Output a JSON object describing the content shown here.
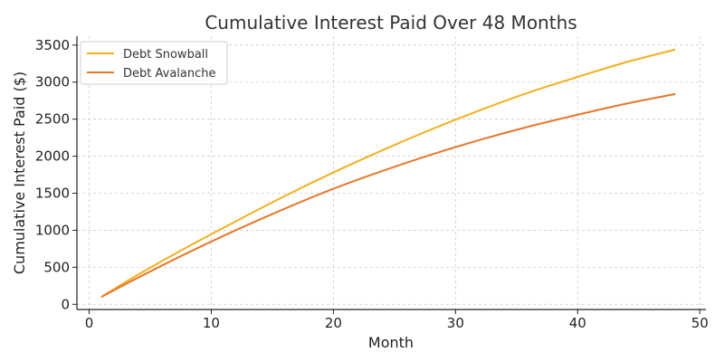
{
  "chart_data": {
    "type": "line",
    "title": "Cumulative Interest Paid Over 48 Months",
    "xlabel": "Month",
    "ylabel": "Cumulative Interest Paid ($)",
    "xlim": [
      -1,
      50.5
    ],
    "ylim": [
      -70,
      3620
    ],
    "xticks": [
      0,
      10,
      20,
      30,
      40,
      50
    ],
    "yticks": [
      0,
      500,
      1000,
      1500,
      2000,
      2500,
      3000,
      3500
    ],
    "grid": true,
    "legend_position": "top-left",
    "x": [
      1,
      4,
      8,
      12,
      16,
      20,
      24,
      28,
      32,
      36,
      40,
      44,
      48
    ],
    "series": [
      {
        "name": "Debt Snowball",
        "color": "#f2b01e",
        "values": [
          100,
          400,
          770,
          1120,
          1460,
          1780,
          2080,
          2360,
          2620,
          2860,
          3070,
          3270,
          3440
        ]
      },
      {
        "name": "Debt Avalanche",
        "color": "#e8772a",
        "values": [
          100,
          360,
          690,
          1000,
          1290,
          1560,
          1800,
          2020,
          2220,
          2400,
          2560,
          2710,
          2840
        ]
      }
    ]
  }
}
